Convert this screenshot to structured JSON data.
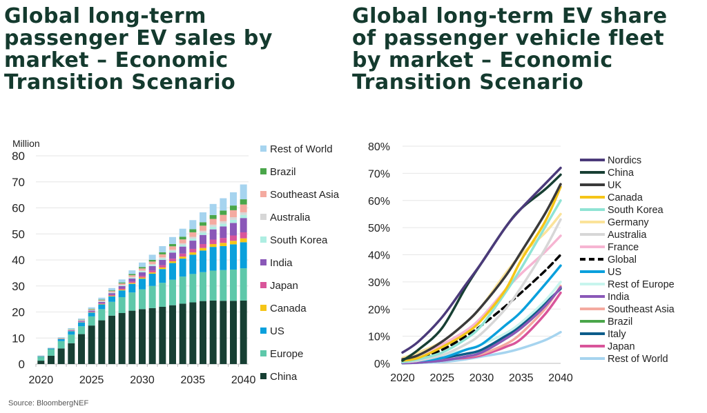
{
  "titles": {
    "left": "Global long-term passenger EV sales by market – Economic Transition Scenario",
    "right": "Global long-term EV share of passenger vehicle fleet by market – Economic Transition Scenario"
  },
  "source": "Source: BloombergNEF",
  "chart_data": [
    {
      "type": "bar",
      "stacked": true,
      "ylabel": "Million",
      "ylim": [
        0,
        80
      ],
      "yticks": [
        "0",
        "10",
        "20",
        "30",
        "40",
        "50",
        "60",
        "70",
        "80"
      ],
      "xticks": [
        "2020",
        "2025",
        "2030",
        "2035",
        "2040"
      ],
      "grid": true,
      "legend": "right",
      "categories": [
        2020,
        2021,
        2022,
        2023,
        2024,
        2025,
        2026,
        2027,
        2028,
        2029,
        2030,
        2031,
        2032,
        2033,
        2034,
        2035,
        2036,
        2037,
        2038,
        2039,
        2040
      ],
      "series": [
        {
          "name": "China",
          "color": "#173f33",
          "values": [
            1.3,
            3.2,
            6,
            8,
            11.5,
            14.8,
            16.8,
            18.6,
            19.6,
            20.5,
            21.1,
            21.5,
            22,
            22.6,
            23.2,
            23.7,
            24.2,
            24.4,
            24.3,
            24.3,
            24.4
          ]
        },
        {
          "name": "Europe",
          "color": "#5ec8aa",
          "values": [
            1.5,
            2.5,
            2.8,
            3.3,
            3.0,
            3.5,
            4.3,
            5.3,
            6.1,
            7.0,
            7.6,
            8.5,
            9.2,
            9.8,
            10.4,
            10.9,
            11.1,
            11.5,
            11.8,
            12.0,
            12.4
          ]
        },
        {
          "name": "US",
          "color": "#0aa0dc",
          "values": [
            0.2,
            0.3,
            0.8,
            1.3,
            1.5,
            1.5,
            1.8,
            2.1,
            2.6,
            3.3,
            4.1,
            4.7,
            5.3,
            6.4,
            6.9,
            7.4,
            8.3,
            9.1,
            9.2,
            9.7,
            10.0
          ]
        },
        {
          "name": "Canada",
          "color": "#f5c518",
          "values": [
            0.02,
            0.02,
            0.05,
            0.08,
            0.1,
            0.14,
            0.18,
            0.22,
            0.29,
            0.36,
            0.43,
            0.5,
            0.6,
            0.68,
            0.78,
            0.9,
            1.0,
            1.1,
            1.25,
            1.35,
            1.5
          ]
        },
        {
          "name": "Japan",
          "color": "#d9559a",
          "values": [
            0.03,
            0.03,
            0.07,
            0.12,
            0.15,
            0.2,
            0.26,
            0.32,
            0.42,
            0.52,
            0.62,
            0.73,
            0.88,
            1.0,
            1.15,
            1.35,
            1.5,
            1.7,
            1.9,
            2.05,
            2.3
          ]
        },
        {
          "name": "India",
          "color": "#8a58b8",
          "values": [
            0.02,
            0.02,
            0.1,
            0.2,
            0.3,
            0.4,
            0.55,
            0.7,
            0.95,
            1.2,
            1.4,
            1.7,
            2.05,
            2.35,
            2.7,
            3.15,
            3.5,
            3.95,
            4.4,
            4.8,
            5.5
          ]
        },
        {
          "name": "South Korea",
          "color": "#aeeee2",
          "values": [
            0.02,
            0.02,
            0.05,
            0.08,
            0.09,
            0.12,
            0.16,
            0.19,
            0.25,
            0.31,
            0.37,
            0.44,
            0.53,
            0.6,
            0.69,
            0.8,
            0.88,
            0.99,
            1.1,
            1.2,
            1.2
          ]
        },
        {
          "name": "Australia",
          "color": "#d7d7d7",
          "values": [
            0.02,
            0.02,
            0.03,
            0.06,
            0.07,
            0.1,
            0.13,
            0.16,
            0.2,
            0.26,
            0.31,
            0.36,
            0.44,
            0.5,
            0.57,
            0.66,
            0.73,
            0.82,
            0.92,
            1.0,
            1.0
          ]
        },
        {
          "name": "Southeast Asia",
          "color": "#f4aaa0",
          "values": [
            0.04,
            0.04,
            0.09,
            0.15,
            0.2,
            0.26,
            0.34,
            0.42,
            0.55,
            0.68,
            0.8,
            0.95,
            1.15,
            1.3,
            1.5,
            1.75,
            1.95,
            2.2,
            2.45,
            2.7,
            3.0
          ]
        },
        {
          "name": "Brazil",
          "color": "#4aa64a",
          "values": [
            0.02,
            0.02,
            0.06,
            0.1,
            0.13,
            0.18,
            0.23,
            0.29,
            0.38,
            0.47,
            0.56,
            0.66,
            0.8,
            0.9,
            1.04,
            1.2,
            1.33,
            1.49,
            1.66,
            1.8,
            2.0
          ]
        },
        {
          "name": "Rest of World",
          "color": "#a6d4ef",
          "values": [
            0.13,
            0.13,
            0.25,
            0.41,
            0.46,
            0.6,
            0.75,
            0.9,
            1.16,
            1.4,
            1.71,
            1.96,
            2.35,
            2.67,
            3.07,
            3.49,
            3.81,
            4.25,
            4.72,
            5.1,
            5.7
          ]
        }
      ]
    },
    {
      "type": "line",
      "ylim": [
        0,
        80
      ],
      "yticks": [
        "0%",
        "10%",
        "20%",
        "30%",
        "40%",
        "50%",
        "60%",
        "70%",
        "80%"
      ],
      "xticks": [
        "2020",
        "2025",
        "2030",
        "2035",
        "2040"
      ],
      "grid": true,
      "legend": "right",
      "x": [
        2020,
        2022,
        2025,
        2028,
        2030,
        2033,
        2035,
        2038,
        2040
      ],
      "series": [
        {
          "name": "Nordics",
          "color": "#4b3a7a",
          "values": [
            4,
            8,
            17,
            29,
            37,
            50,
            57,
            66,
            72
          ]
        },
        {
          "name": "China",
          "color": "#173f33",
          "values": [
            1,
            5,
            13,
            28,
            37,
            50,
            57,
            64,
            69.5
          ]
        },
        {
          "name": "UK",
          "color": "#3a3a3a",
          "values": [
            1.5,
            3,
            8,
            15,
            21,
            32,
            41,
            55,
            66
          ]
        },
        {
          "name": "Canada",
          "color": "#f5c518",
          "values": [
            1,
            2,
            6,
            11,
            16,
            27,
            38,
            52,
            65
          ]
        },
        {
          "name": "South Korea",
          "color": "#8fe3d4",
          "values": [
            0.5,
            1.5,
            4,
            9,
            14,
            26,
            35,
            50,
            60
          ]
        },
        {
          "name": "Germany",
          "color": "#fbe39a",
          "values": [
            2,
            4,
            8,
            15,
            21,
            33,
            40,
            48,
            55
          ]
        },
        {
          "name": "Australia",
          "color": "#d7d7d7",
          "values": [
            0.5,
            1,
            3,
            7,
            11,
            20,
            28,
            42,
            53
          ]
        },
        {
          "name": "France",
          "color": "#f6b5d2",
          "values": [
            1.5,
            3,
            7,
            12,
            17,
            27,
            33,
            41,
            47
          ]
        },
        {
          "name": "Global",
          "color": "#000000",
          "dashed": true,
          "values": [
            1,
            2,
            5,
            10,
            14,
            21,
            26,
            34,
            40
          ]
        },
        {
          "name": "US",
          "color": "#0aa0dc",
          "values": [
            0.5,
            1,
            2,
            5,
            7,
            14,
            19,
            29,
            36
          ]
        },
        {
          "name": "Rest of Europe",
          "color": "#c8f5ee",
          "values": [
            0.5,
            1,
            3,
            5,
            7,
            11,
            15,
            23,
            30
          ]
        },
        {
          "name": "India",
          "color": "#8a58b8",
          "values": [
            0.1,
            0.3,
            1,
            2.5,
            4,
            9,
            13,
            21,
            28
          ]
        },
        {
          "name": "Southeast Asia",
          "color": "#f4aaa0",
          "values": [
            0.2,
            0.5,
            1,
            2.5,
            3.5,
            7,
            11,
            20,
            28.5
          ]
        },
        {
          "name": "Brazil",
          "color": "#4aa64a",
          "values": [
            0.1,
            0.3,
            1,
            2.5,
            4,
            9,
            13,
            21,
            28
          ]
        },
        {
          "name": "Italy",
          "color": "#0c5c8a",
          "values": [
            0.5,
            1,
            2,
            3.5,
            5,
            10,
            14,
            22,
            27.5
          ]
        },
        {
          "name": "Japan",
          "color": "#d9559a",
          "values": [
            0.5,
            1,
            1.5,
            2,
            3,
            6,
            9,
            18,
            26
          ]
        },
        {
          "name": "Rest of World",
          "color": "#a6d4ef",
          "values": [
            0,
            0.2,
            0.5,
            1.5,
            2.5,
            4,
            5.5,
            8.5,
            11.5
          ]
        }
      ]
    }
  ]
}
